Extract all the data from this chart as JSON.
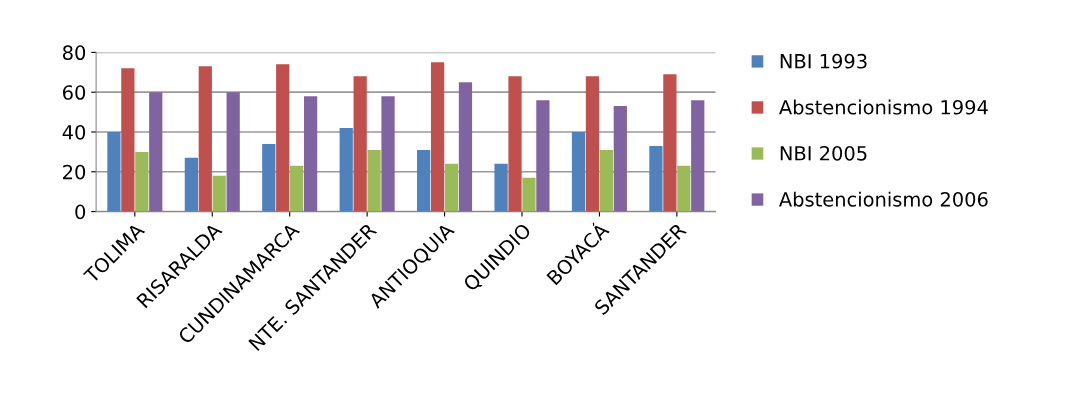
{
  "chart_data": {
    "type": "bar",
    "categories": [
      "TOLIMA",
      "RISARALDA",
      "CUNDINAMARCA",
      "NTE. SANTANDER",
      "ANTIOQUIA",
      "QUINDIO",
      "BOYACÁ",
      "SANTANDER"
    ],
    "series": [
      {
        "name": "NBI 1993",
        "color": "#4f81bd",
        "values": [
          40,
          27,
          34,
          42,
          31,
          24,
          40,
          33
        ]
      },
      {
        "name": "Abstencionismo 1994",
        "color": "#c0504d",
        "values": [
          72,
          73,
          74,
          68,
          75,
          68,
          68,
          69
        ]
      },
      {
        "name": "NBI 2005",
        "color": "#9bbb59",
        "values": [
          30,
          18,
          23,
          31,
          24,
          17,
          31,
          23
        ]
      },
      {
        "name": "Abstencionismo 2006",
        "color": "#8064a2",
        "values": [
          60,
          60,
          58,
          58,
          65,
          56,
          53,
          56
        ]
      }
    ],
    "ylim": [
      0,
      80
    ],
    "yticks": [
      0,
      20,
      40,
      60,
      80
    ],
    "grid": "y",
    "legend": "right"
  }
}
